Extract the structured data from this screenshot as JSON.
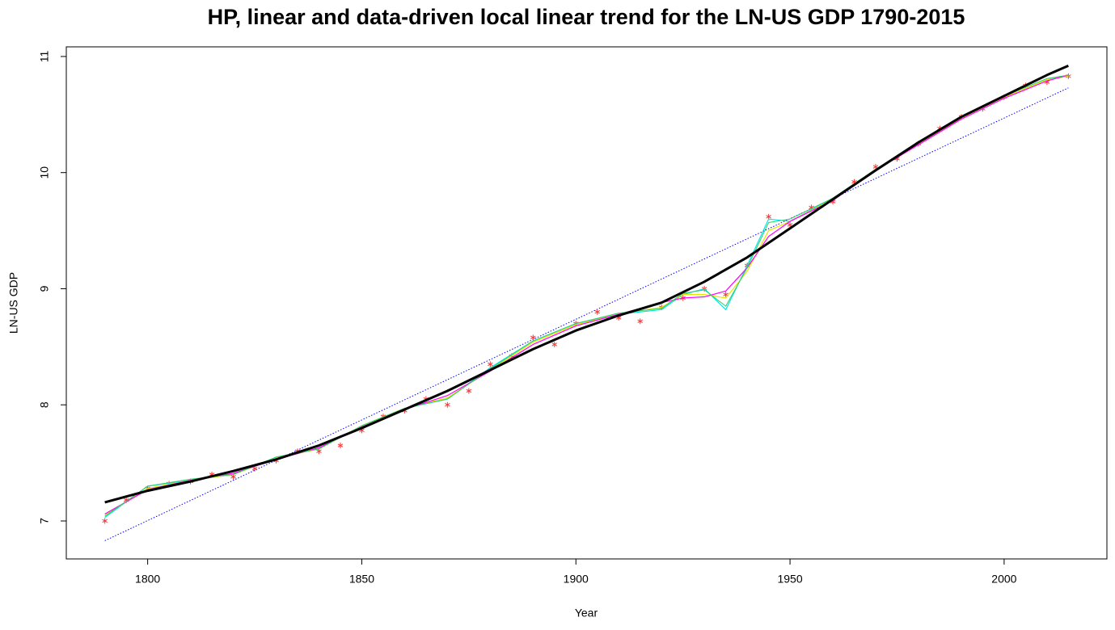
{
  "chart_data": {
    "type": "line",
    "title": "HP, linear and data-driven local linear trend for the LN-US GDP 1790-2015",
    "xlabel": "Year",
    "ylabel": "LN-US GDP",
    "xlim": [
      1781,
      2024
    ],
    "ylim": [
      6.673,
      11.083
    ],
    "xticks": [
      1800,
      1850,
      1900,
      1950,
      2000
    ],
    "yticks": [
      7,
      8,
      9,
      10,
      11
    ],
    "grid": false,
    "series": [
      {
        "style": "dotted",
        "color": "#0000ff",
        "width": 1,
        "x": [
          1790,
          2015
        ],
        "values": [
          6.83,
          10.73
        ]
      },
      {
        "style": "points",
        "color": "#ff3333",
        "x": [
          1790,
          1795,
          1800,
          1805,
          1810,
          1815,
          1820,
          1825,
          1830,
          1835,
          1840,
          1845,
          1850,
          1855,
          1860,
          1865,
          1870,
          1875,
          1880,
          1885,
          1890,
          1895,
          1900,
          1905,
          1910,
          1915,
          1920,
          1925,
          1930,
          1935,
          1940,
          1945,
          1950,
          1955,
          1960,
          1965,
          1970,
          1975,
          1980,
          1985,
          1990,
          1995,
          2000,
          2005,
          2010,
          2015
        ],
        "values": [
          7.0,
          7.18,
          7.28,
          7.32,
          7.34,
          7.4,
          7.38,
          7.45,
          7.52,
          7.6,
          7.6,
          7.65,
          7.78,
          7.9,
          7.95,
          8.05,
          8.0,
          8.12,
          8.35,
          8.42,
          8.58,
          8.52,
          8.7,
          8.8,
          8.75,
          8.72,
          8.84,
          8.92,
          9.0,
          8.95,
          9.2,
          9.62,
          9.55,
          9.7,
          9.75,
          9.92,
          10.05,
          10.12,
          10.25,
          10.38,
          10.48,
          10.55,
          10.65,
          10.75,
          10.78,
          10.83
        ]
      },
      {
        "style": "line",
        "color": "#00e5e5",
        "width": 1.2,
        "x": [
          1790,
          1800,
          1810,
          1820,
          1830,
          1840,
          1850,
          1860,
          1870,
          1880,
          1890,
          1900,
          1910,
          1920,
          1925,
          1930,
          1935,
          1940,
          1945,
          1950,
          1960,
          1970,
          1980,
          1990,
          2000,
          2010,
          2015
        ],
        "values": [
          7.03,
          7.3,
          7.35,
          7.4,
          7.55,
          7.62,
          7.82,
          7.97,
          8.05,
          8.32,
          8.55,
          8.7,
          8.78,
          8.82,
          8.95,
          9.0,
          8.82,
          9.2,
          9.6,
          9.58,
          9.78,
          10.02,
          10.25,
          10.47,
          10.65,
          10.8,
          10.84
        ]
      },
      {
        "style": "line",
        "color": "#e5e500",
        "width": 1.2,
        "x": [
          1790,
          1800,
          1810,
          1820,
          1830,
          1840,
          1850,
          1860,
          1870,
          1880,
          1890,
          1900,
          1910,
          1920,
          1925,
          1930,
          1935,
          1940,
          1945,
          1950,
          1960,
          1970,
          1980,
          1990,
          2000,
          2010,
          2015
        ],
        "values": [
          7.05,
          7.28,
          7.35,
          7.4,
          7.54,
          7.62,
          7.82,
          7.97,
          8.06,
          8.3,
          8.54,
          8.69,
          8.78,
          8.84,
          8.95,
          8.95,
          8.92,
          9.15,
          9.5,
          9.58,
          9.77,
          10.02,
          10.25,
          10.47,
          10.65,
          10.8,
          10.83
        ]
      },
      {
        "style": "line",
        "color": "#ff00ff",
        "width": 1.2,
        "x": [
          1790,
          1800,
          1810,
          1820,
          1830,
          1840,
          1850,
          1860,
          1870,
          1880,
          1890,
          1900,
          1910,
          1920,
          1925,
          1930,
          1935,
          1940,
          1945,
          1950,
          1960,
          1970,
          1980,
          1990,
          2000,
          2010,
          2015
        ],
        "values": [
          7.06,
          7.27,
          7.35,
          7.41,
          7.53,
          7.63,
          7.81,
          7.96,
          8.08,
          8.29,
          8.52,
          8.68,
          8.78,
          8.88,
          8.92,
          8.93,
          8.98,
          9.18,
          9.45,
          9.58,
          9.76,
          10.02,
          10.24,
          10.46,
          10.64,
          10.79,
          10.84
        ]
      },
      {
        "style": "line",
        "color": "#33cc66",
        "width": 1,
        "x": [
          1790,
          1800,
          1810,
          1820,
          1830,
          1840,
          1850,
          1860,
          1870,
          1880,
          1890,
          1900,
          1910,
          1920,
          1925,
          1930,
          1935,
          1940,
          1945,
          1950,
          1960,
          1970,
          1980,
          1990,
          2000,
          2010,
          2015
        ],
        "values": [
          7.04,
          7.3,
          7.36,
          7.4,
          7.55,
          7.62,
          7.82,
          7.97,
          8.05,
          8.31,
          8.55,
          8.7,
          8.79,
          8.83,
          8.96,
          8.99,
          8.85,
          9.18,
          9.57,
          9.6,
          9.78,
          10.03,
          10.26,
          10.48,
          10.66,
          10.81,
          10.84
        ]
      },
      {
        "style": "line",
        "color": "#000000",
        "width": 3,
        "x": [
          1790,
          1800,
          1810,
          1820,
          1830,
          1840,
          1850,
          1860,
          1870,
          1880,
          1890,
          1900,
          1910,
          1920,
          1930,
          1940,
          1950,
          1960,
          1970,
          1980,
          1990,
          2000,
          2010,
          2015
        ],
        "values": [
          7.16,
          7.26,
          7.34,
          7.43,
          7.53,
          7.65,
          7.8,
          7.96,
          8.12,
          8.3,
          8.48,
          8.64,
          8.77,
          8.88,
          9.06,
          9.27,
          9.52,
          9.77,
          10.02,
          10.26,
          10.48,
          10.66,
          10.84,
          10.92
        ]
      }
    ]
  }
}
